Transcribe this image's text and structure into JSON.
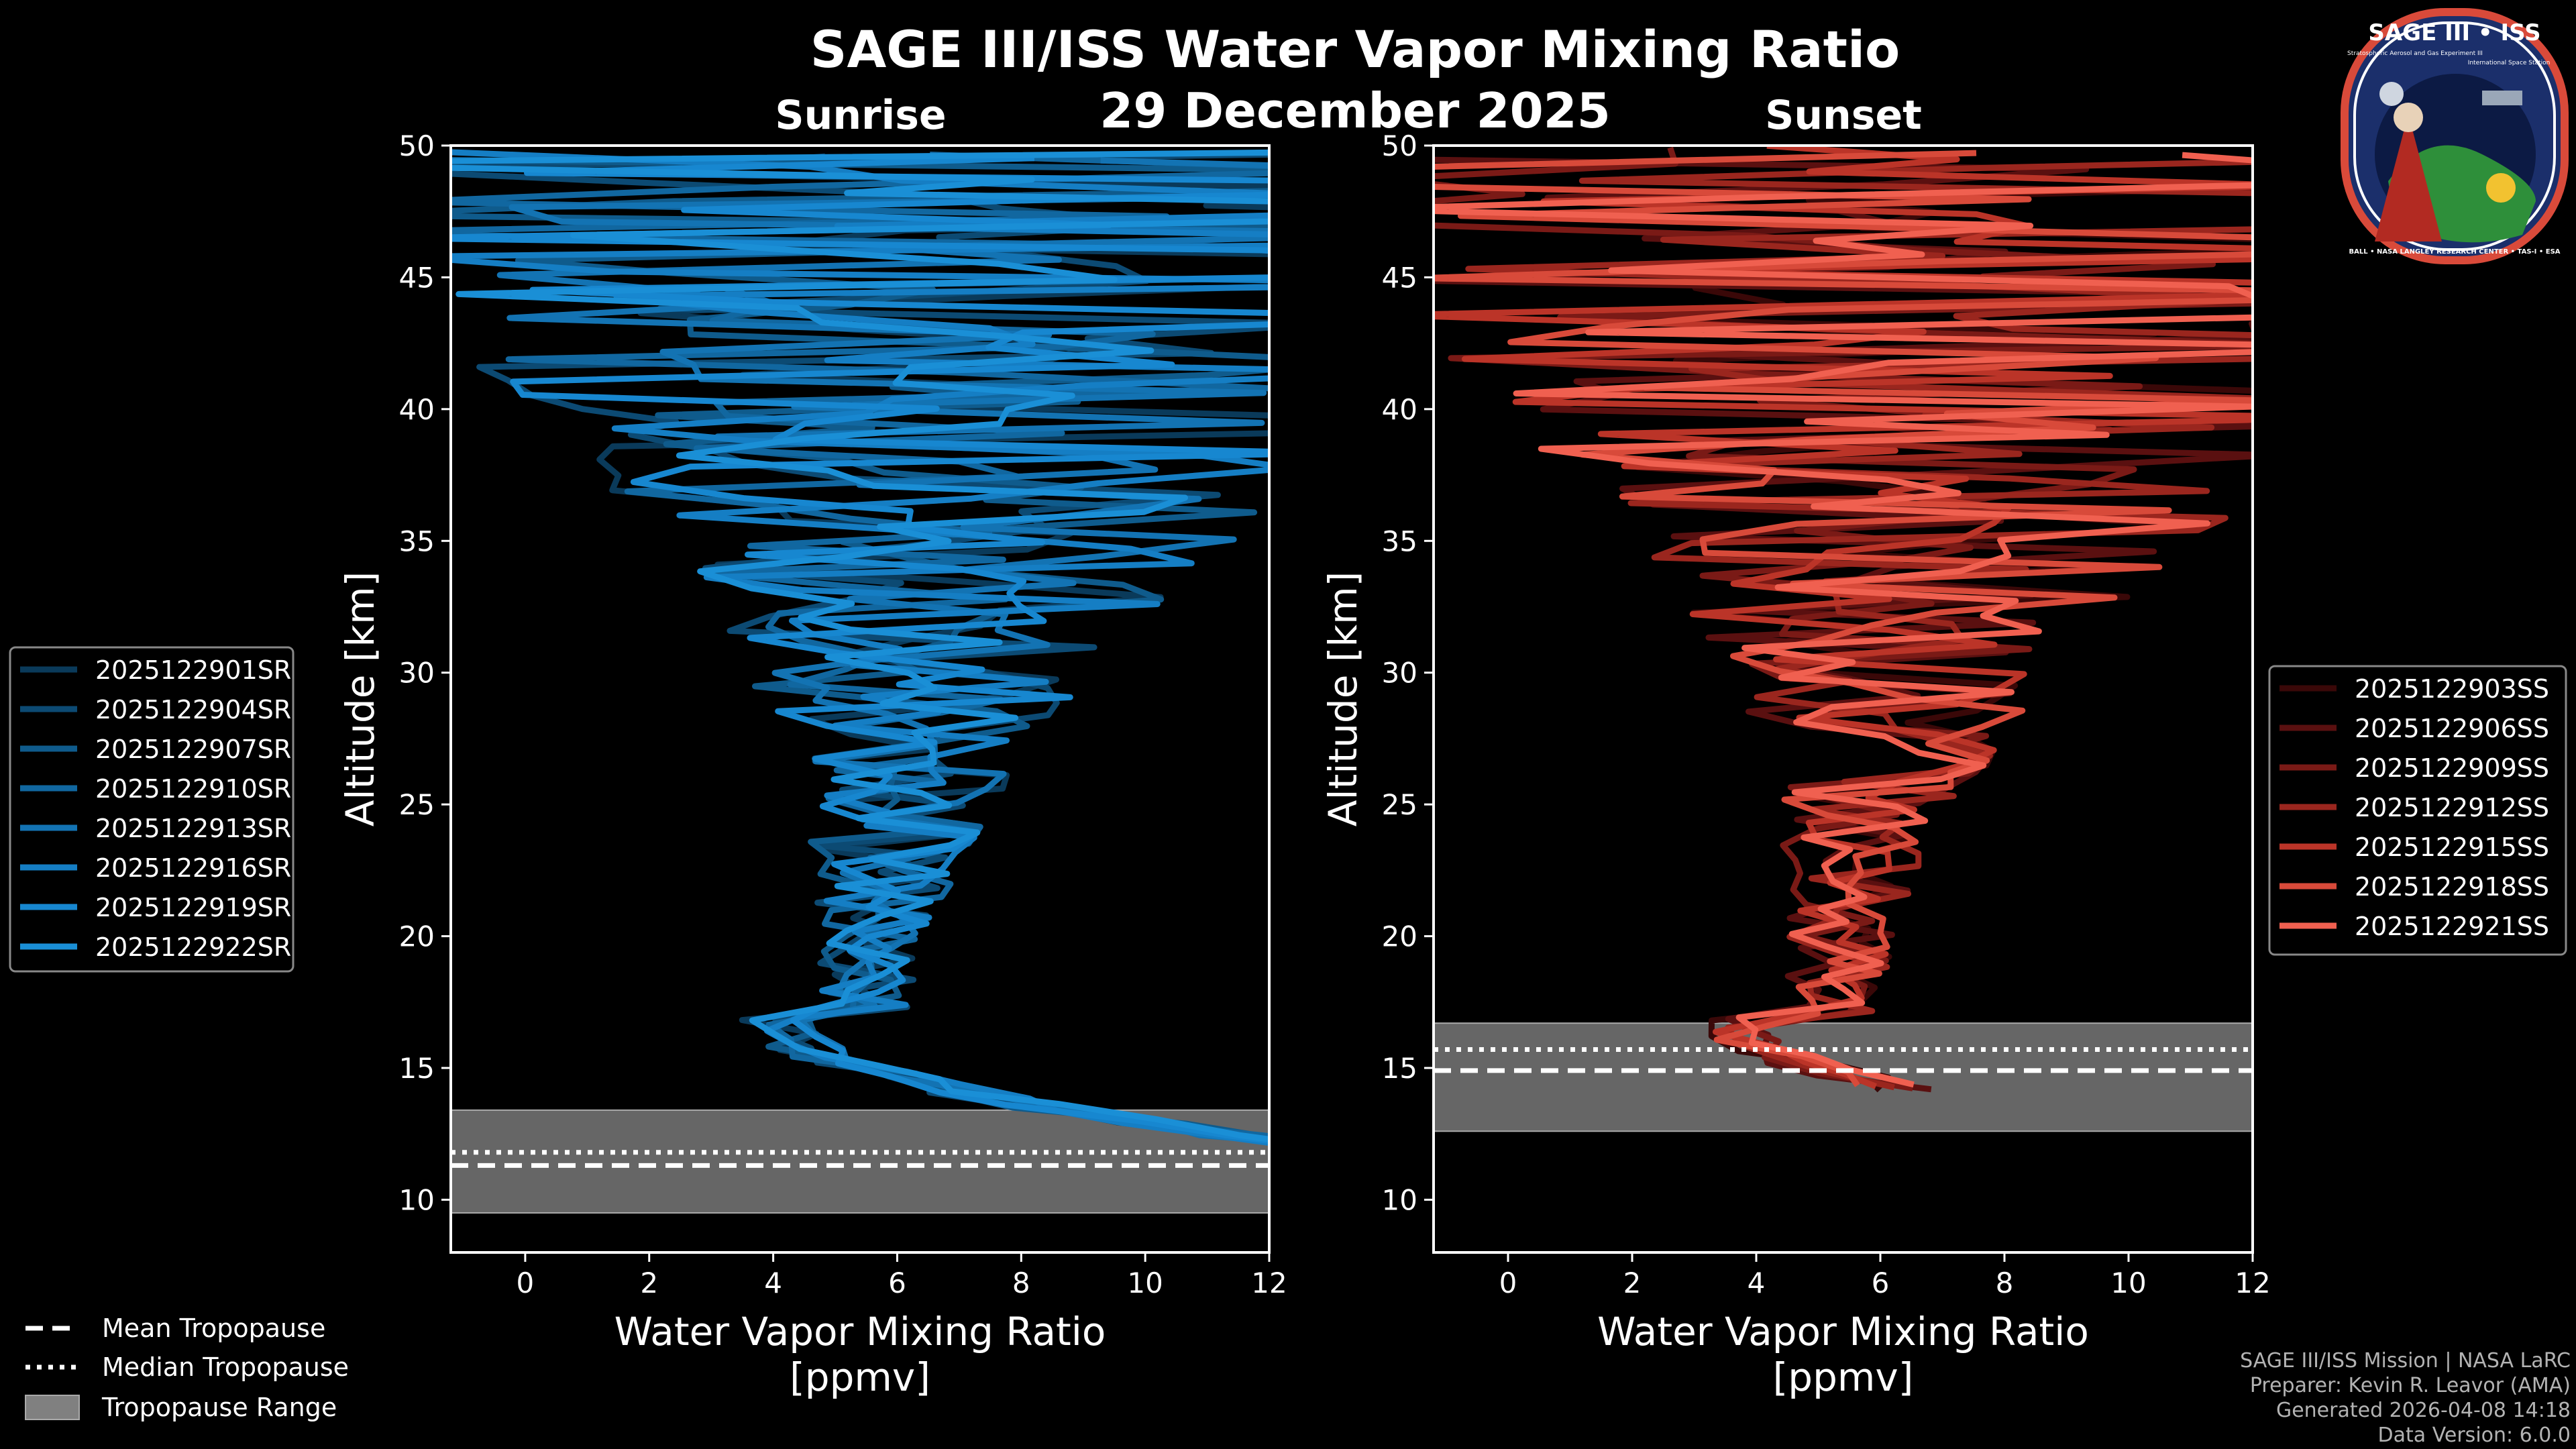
{
  "title": "SAGE III/ISS Water Vapor Mixing Ratio",
  "date": "29 December 2025",
  "colors": {
    "background": "#000000",
    "sunrise": "#1a8fd6",
    "sunset": "#f06050",
    "trop_band": "#808080"
  },
  "logo": {
    "title": "SAGE III • ISS",
    "subtitle": "Stratospheric Aerosol and Gas Experiment III",
    "right_text": "International Space Station",
    "ring_text": "BALL • NASA LANGLEY RESEARCH CENTER • TAS-I • ESA"
  },
  "footer": {
    "line1": "SAGE III/ISS Mission | NASA LaRC",
    "line2": "Preparer: Kevin R. Leavor (AMA)",
    "line3": "Generated 2026-04-08 14:18",
    "line4": "Data Version: 6.0.0"
  },
  "trop_legend": {
    "mean": "Mean Tropopause",
    "median": "Median Tropopause",
    "range": "Tropopause Range"
  },
  "chart_data": [
    {
      "type": "line",
      "subtitle": "Sunrise",
      "xlabel": "Water Vapor Mixing Ratio\n[ppmv]",
      "ylabel": "Altitude [km]",
      "xlim": [
        -1.2,
        12
      ],
      "ylim": [
        8,
        50
      ],
      "xticks": [
        0,
        2,
        4,
        6,
        8,
        10,
        12
      ],
      "yticks": [
        10,
        15,
        20,
        25,
        30,
        35,
        40,
        45,
        50
      ],
      "tropopause": {
        "mean": 11.3,
        "median": 11.8,
        "range": [
          9.5,
          13.4
        ]
      },
      "legend_position": "left",
      "series": [
        {
          "name": "2025122901SR",
          "color": "#0a3a5a"
        },
        {
          "name": "2025122904SR",
          "color": "#0c4a73"
        },
        {
          "name": "2025122907SR",
          "color": "#0f5b8c"
        },
        {
          "name": "2025122910SR",
          "color": "#1167a0"
        },
        {
          "name": "2025122913SR",
          "color": "#1373b3"
        },
        {
          "name": "2025122916SR",
          "color": "#157ec4"
        },
        {
          "name": "2025122919SR",
          "color": "#1787d0"
        },
        {
          "name": "2025122922SR",
          "color": "#1a8fd6"
        }
      ]
    },
    {
      "type": "line",
      "subtitle": "Sunset",
      "xlabel": "Water Vapor Mixing Ratio\n[ppmv]",
      "ylabel": "Altitude [km]",
      "xlim": [
        -1.2,
        12
      ],
      "ylim": [
        8,
        50
      ],
      "xticks": [
        0,
        2,
        4,
        6,
        8,
        10,
        12
      ],
      "yticks": [
        10,
        15,
        20,
        25,
        30,
        35,
        40,
        45,
        50
      ],
      "tropopause": {
        "mean": 14.9,
        "median": 15.7,
        "range": [
          12.6,
          16.7
        ]
      },
      "legend_position": "right",
      "series": [
        {
          "name": "2025122903SS",
          "color": "#3a0808"
        },
        {
          "name": "2025122906SS",
          "color": "#5a1010"
        },
        {
          "name": "2025122909SS",
          "color": "#7a1a16"
        },
        {
          "name": "2025122912SS",
          "color": "#9a261e"
        },
        {
          "name": "2025122915SS",
          "color": "#bb3428"
        },
        {
          "name": "2025122918SS",
          "color": "#d84a3a"
        },
        {
          "name": "2025122921SS",
          "color": "#f06050"
        }
      ]
    }
  ]
}
